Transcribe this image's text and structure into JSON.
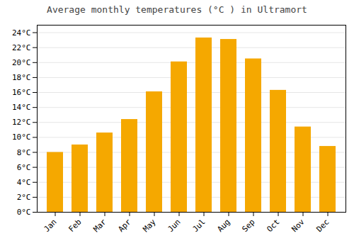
{
  "chart_data": {
    "type": "bar",
    "title": "Average monthly temperatures (°C ) in Ultramort",
    "categories": [
      "Jan",
      "Feb",
      "Mar",
      "Apr",
      "May",
      "Jun",
      "Jul",
      "Aug",
      "Sep",
      "Oct",
      "Nov",
      "Dec"
    ],
    "values": [
      8.0,
      9.0,
      10.6,
      12.4,
      16.1,
      20.1,
      23.3,
      23.1,
      20.5,
      16.3,
      11.4,
      8.8
    ],
    "color": "#F5A800",
    "ylim": [
      0,
      25
    ],
    "yticks": [
      {
        "value": 0,
        "label": "0°C"
      },
      {
        "value": 2,
        "label": "2°C"
      },
      {
        "value": 4,
        "label": "4°C"
      },
      {
        "value": 6,
        "label": "6°C"
      },
      {
        "value": 8,
        "label": "8°C"
      },
      {
        "value": 10,
        "label": "10°C"
      },
      {
        "value": 12,
        "label": "12°C"
      },
      {
        "value": 14,
        "label": "14°C"
      },
      {
        "value": 16,
        "label": "16°C"
      },
      {
        "value": 18,
        "label": "18°C"
      },
      {
        "value": 20,
        "label": "20°C"
      },
      {
        "value": 22,
        "label": "22°C"
      },
      {
        "value": 24,
        "label": "24°C"
      }
    ],
    "grid": true
  }
}
